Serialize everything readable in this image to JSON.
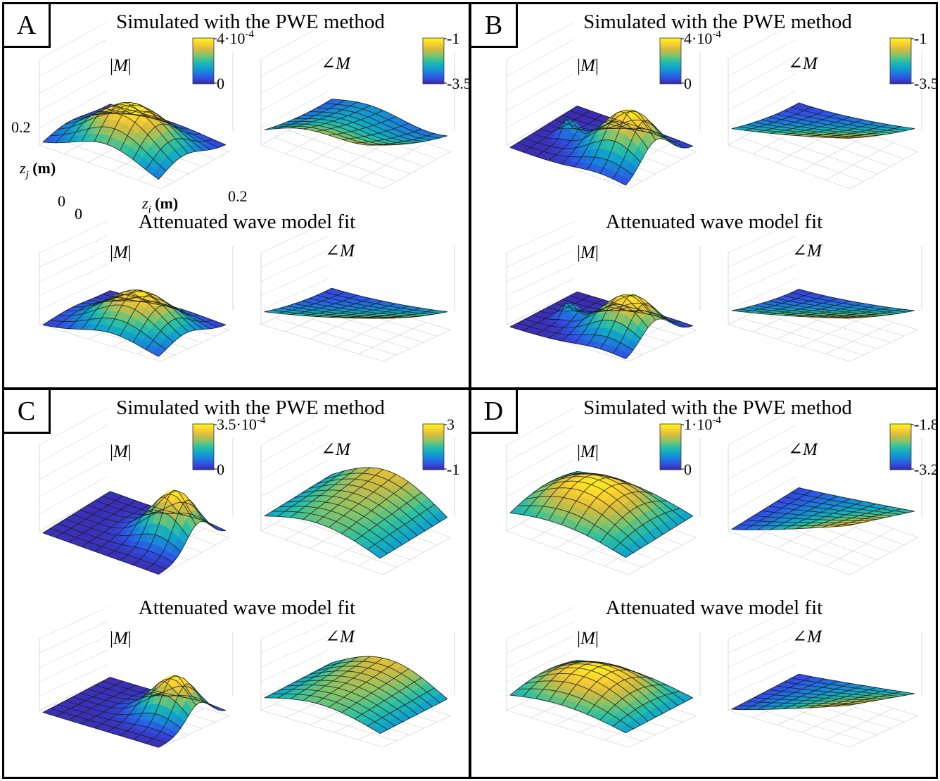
{
  "figure": {
    "colormap": [
      "#3e26a8",
      "#2e52e6",
      "#1a83d8",
      "#10a8c8",
      "#2ec0a0",
      "#84c46a",
      "#d1bb41",
      "#fbd030",
      "#f9fb15"
    ],
    "grid_color": "#d9d9d9",
    "mesh_color": "#1a1a1a"
  },
  "chart_data": [
    {
      "panel": "A",
      "type": "surface",
      "row_titles": [
        "Simulated with the PWE method",
        "Attenuated wave model fit"
      ],
      "subplot_titles": [
        "|M|",
        "∠M"
      ],
      "colorbars": [
        {
          "quantity": "|M|",
          "max_label": "4·10",
          "max_exponent": "-4",
          "min_label": "0"
        },
        {
          "quantity": "∠M",
          "max_label": "-1",
          "min_label": "-3.5"
        }
      ],
      "axes": {
        "xlabel_var": "z",
        "xlabel_sub": "i",
        "xlabel_unit": "(m)",
        "ylabel_var": "z",
        "ylabel_sub": "j",
        "ylabel_unit": "(m)",
        "x_ticks": [
          "0",
          "0.2"
        ],
        "y_ticks": [
          "0",
          "0.2"
        ],
        "xlim": [
          0,
          0.2
        ],
        "ylim": [
          0,
          0.2
        ]
      }
    },
    {
      "panel": "B",
      "type": "surface",
      "row_titles": [
        "Simulated with the PWE method",
        "Attenuated wave model fit"
      ],
      "subplot_titles": [
        "|M|",
        "∠M"
      ],
      "colorbars": [
        {
          "quantity": "|M|",
          "max_label": "4·10",
          "max_exponent": "-4",
          "min_label": "0"
        },
        {
          "quantity": "∠M",
          "max_label": "-1",
          "min_label": "-3.5"
        }
      ]
    },
    {
      "panel": "C",
      "type": "surface",
      "row_titles": [
        "Simulated with the PWE method",
        "Attenuated wave model fit"
      ],
      "subplot_titles": [
        "|M|",
        "∠M"
      ],
      "colorbars": [
        {
          "quantity": "|M|",
          "max_label": "3.5·10",
          "max_exponent": "-4",
          "min_label": "0"
        },
        {
          "quantity": "∠M",
          "max_label": "3",
          "min_label": "-1"
        }
      ]
    },
    {
      "panel": "D",
      "type": "surface",
      "row_titles": [
        "Simulated with the PWE method",
        "Attenuated wave model fit"
      ],
      "subplot_titles": [
        "|M|",
        "∠M"
      ],
      "colorbars": [
        {
          "quantity": "|M|",
          "max_label": "1·10",
          "max_exponent": "-4",
          "min_label": "0"
        },
        {
          "quantity": "∠M",
          "max_label": "-1.8",
          "min_label": "-3.2"
        }
      ]
    }
  ]
}
